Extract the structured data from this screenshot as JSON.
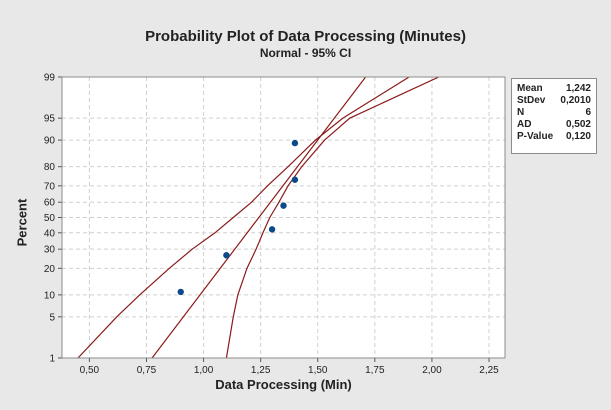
{
  "chart_data": {
    "type": "scatter",
    "title": "Probability Plot of Data Processing (Minutes)",
    "subtitle": "Normal - 95% CI",
    "xlabel": "Data Processing (Min)",
    "ylabel": "Percent",
    "x_ticks": [
      "0,50",
      "0,75",
      "1,00",
      "1,25",
      "1,50",
      "1,75",
      "2,00",
      "2,25"
    ],
    "x_tick_values": [
      0.5,
      0.75,
      1.0,
      1.25,
      1.5,
      1.75,
      2.0,
      2.25
    ],
    "y_ticks": [
      "1",
      "5",
      "10",
      "20",
      "30",
      "40",
      "50",
      "60",
      "70",
      "80",
      "90",
      "95",
      "99"
    ],
    "y_tick_values": [
      1,
      5,
      10,
      20,
      30,
      40,
      50,
      60,
      70,
      80,
      90,
      95,
      99
    ],
    "xlim": [
      0.38,
      2.32
    ],
    "ylim": [
      1,
      99
    ],
    "y_scale": "normal probability",
    "grid": true,
    "points": [
      {
        "x": 0.9,
        "y": 10.9
      },
      {
        "x": 1.1,
        "y": 26.6
      },
      {
        "x": 1.3,
        "y": 42.2
      },
      {
        "x": 1.35,
        "y": 57.8
      },
      {
        "x": 1.4,
        "y": 73.4
      },
      {
        "x": 1.4,
        "y": 89.1
      }
    ],
    "fit": {
      "mean": 1.242,
      "stdev": 0.201
    },
    "ci_band": {
      "lower": [
        [
          0.45,
          1
        ],
        [
          0.62,
          5
        ],
        [
          0.72,
          10
        ],
        [
          0.85,
          20
        ],
        [
          0.95,
          30
        ],
        [
          1.05,
          40
        ],
        [
          1.13,
          50
        ],
        [
          1.21,
          60
        ],
        [
          1.28,
          70
        ],
        [
          1.37,
          80
        ],
        [
          1.49,
          90
        ],
        [
          1.61,
          95
        ],
        [
          1.9,
          99
        ]
      ],
      "upper": [
        [
          1.1,
          1
        ],
        [
          1.13,
          5
        ],
        [
          1.15,
          10
        ],
        [
          1.19,
          20
        ],
        [
          1.23,
          30
        ],
        [
          1.26,
          40
        ],
        [
          1.29,
          50
        ],
        [
          1.33,
          60
        ],
        [
          1.37,
          70
        ],
        [
          1.43,
          80
        ],
        [
          1.53,
          90
        ],
        [
          1.64,
          95
        ],
        [
          2.03,
          99
        ]
      ]
    },
    "colors": {
      "points": "#0b4a8b",
      "lines": "#8b1a1a",
      "grid": "#d0d0d0",
      "plot_bg": "#ffffff"
    },
    "stats": [
      {
        "label": "Mean",
        "value": "1,242"
      },
      {
        "label": "StDev",
        "value": "0,2010"
      },
      {
        "label": "N",
        "value": "6"
      },
      {
        "label": "AD",
        "value": "0,502"
      },
      {
        "label": "P-Value",
        "value": "0,120"
      }
    ]
  }
}
